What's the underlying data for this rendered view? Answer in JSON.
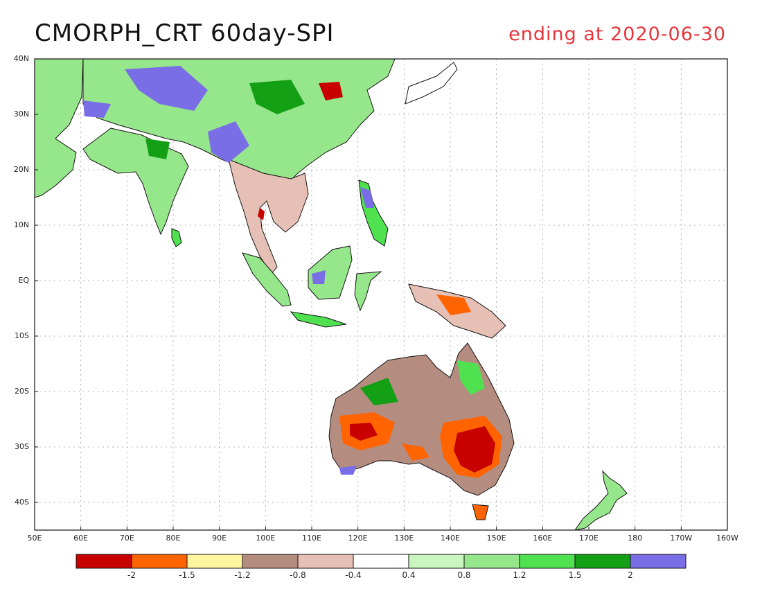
{
  "title": "CMORPH_CRT 60day-SPI",
  "subtitle": "ending at 2020-06-30",
  "lat_labels": [
    "40N",
    "30N",
    "20N",
    "10N",
    "EQ",
    "10S",
    "20S",
    "30S",
    "40S"
  ],
  "lon_labels": [
    "50E",
    "60E",
    "70E",
    "80E",
    "90E",
    "100E",
    "110E",
    "120E",
    "130E",
    "140E",
    "150E",
    "160E",
    "170E",
    "180",
    "170W",
    "160W"
  ],
  "colorbar": {
    "colors": [
      "#c80000",
      "#ff6400",
      "#fff5a0",
      "#b48c80",
      "#e6c0b4",
      "#ffffff",
      "#c8f5c0",
      "#96e68c",
      "#50e150",
      "#14a014",
      "#7a6ee6"
    ],
    "labels": [
      "-2",
      "-1.5",
      "-1.2",
      "-0.8",
      "-0.4",
      "0.4",
      "0.8",
      "1.2",
      "1.5",
      "2"
    ]
  },
  "map": {
    "lon_range": [
      50,
      200
    ],
    "lat_range": [
      -45,
      40
    ],
    "grid": "dotted",
    "regions": [
      {
        "name": "south-asia-china",
        "category": "wet",
        "color": "#50e150"
      },
      {
        "name": "eastern-australia",
        "category": "dry",
        "color": "#c80000"
      },
      {
        "name": "southwestern-australia",
        "category": "dry",
        "color": "#ff6400"
      }
    ]
  }
}
